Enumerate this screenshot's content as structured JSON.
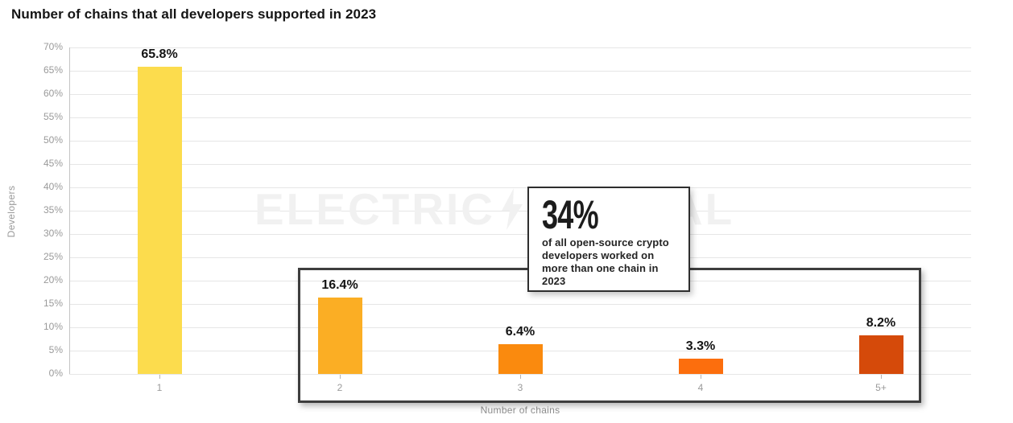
{
  "title": "Number of chains that all developers supported in 2023",
  "watermark": {
    "text_left": "ELECTRIC",
    "bolt_icon": "lightning-bolt",
    "text_right": "CAPITAL",
    "color": "#f1f1f1"
  },
  "chart_data": {
    "type": "bar",
    "title": "Number of chains that all developers supported in 2023",
    "xlabel": "Number of chains",
    "ylabel": "Developers",
    "categories": [
      "1",
      "2",
      "3",
      "4",
      "5+"
    ],
    "values": [
      65.8,
      16.4,
      6.4,
      3.3,
      8.2
    ],
    "value_labels": [
      "65.8%",
      "16.4%",
      "6.4%",
      "3.3%",
      "8.2%"
    ],
    "bar_colors": [
      "#fcdc4d",
      "#fbae24",
      "#fa8a0e",
      "#fc6e0d",
      "#d54a0a"
    ],
    "ylim": [
      0,
      70
    ],
    "ytick_step": 5,
    "ytick_labels": [
      "0%",
      "5%",
      "10%",
      "15%",
      "20%",
      "25%",
      "30%",
      "35%",
      "40%",
      "45%",
      "50%",
      "55%",
      "60%",
      "65%",
      "70%"
    ],
    "grid": true,
    "legend": "none",
    "highlight_region": {
      "categories": [
        "2",
        "3",
        "4",
        "5+"
      ],
      "note": "boxed region around multi-chain bars"
    }
  },
  "callout": {
    "stat": "34%",
    "description": "of all open-source crypto developers worked on more than one chain in 2023"
  }
}
